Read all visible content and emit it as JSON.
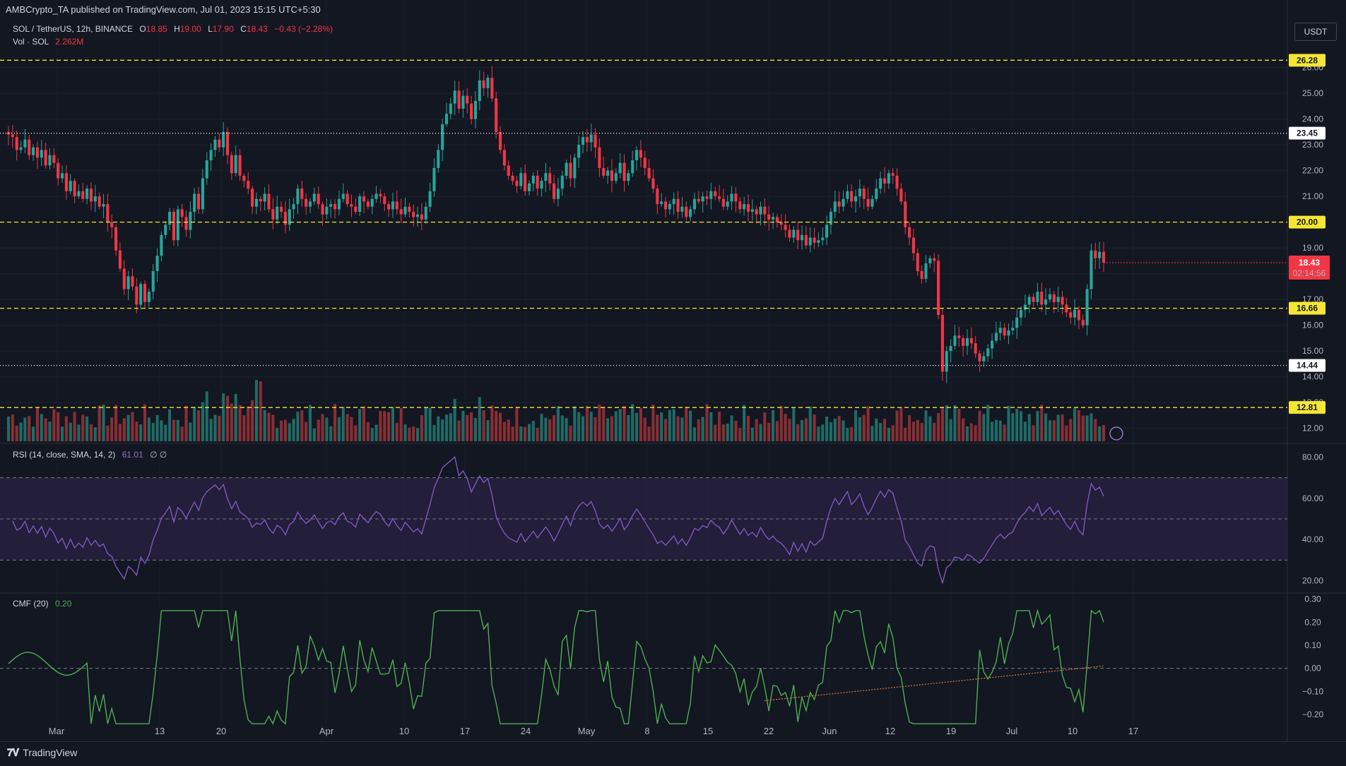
{
  "publication": {
    "text": "AMBCrypto_TA published on TradingView.com, Jul 01, 2023 15:15 UTC+5:30"
  },
  "main_legend": {
    "symbol": "SOL / TetherUS, 12h, BINANCE",
    "o_label": "O",
    "o_value": "18.85",
    "h_label": "H",
    "h_value": "19.00",
    "l_label": "L",
    "l_value": "17.90",
    "c_label": "C",
    "c_value": "18.43",
    "change": "−0.43 (−2.28%)"
  },
  "volume_legend": {
    "label": "Vol · SOL",
    "value": "2.262M"
  },
  "rsi_legend": {
    "label": "RSI (14, close, SMA, 14, 2)",
    "value": "61.01",
    "extra": "∅ ∅"
  },
  "cmf_legend": {
    "label": "CMF (20)",
    "value": "0.20"
  },
  "currency": "USDT",
  "branding": {
    "mark": "𝟕𝐕",
    "name": "TradingView"
  },
  "colors": {
    "background": "#131722",
    "up": "#26a69a",
    "down": "#f23645",
    "volume_up": "#1f6b66",
    "volume_down": "#8a2e33",
    "level_line": "#f5e633",
    "white_line": "#ffffff",
    "rsi_line": "#7e57c2",
    "rsi_band": "#2a2142",
    "cmf_line": "#4caf50",
    "trend_line": "#e07b39"
  },
  "price_levels": [
    {
      "value": 26.28,
      "label": "26.28",
      "style": "yellow-dashed"
    },
    {
      "value": 23.45,
      "label": "23.45",
      "style": "white-dotted"
    },
    {
      "value": 20.0,
      "label": "20.00",
      "style": "yellow-dashed"
    },
    {
      "value": 16.66,
      "label": "16.66",
      "style": "yellow-dashed"
    },
    {
      "value": 14.44,
      "label": "14.44",
      "style": "white-dotted"
    },
    {
      "value": 12.81,
      "label": "12.81",
      "style": "yellow-dashed"
    }
  ],
  "current_price": {
    "value": 18.43,
    "label": "18.43",
    "countdown": "02:14:56"
  },
  "chart_data": [
    {
      "type": "candlestick",
      "title": "SOL / TetherUS, 12h, BINANCE",
      "ylabel": "USDT",
      "ylim": [
        11.5,
        26.7
      ],
      "yticks": [
        "12.00",
        "13.00",
        "14.00",
        "15.00",
        "16.00",
        "17.00",
        "18.00",
        "19.00",
        "20.00",
        "21.00",
        "22.00",
        "23.00",
        "24.00",
        "25.00",
        "26.00"
      ],
      "xticks": [
        "Mar",
        "13",
        "20",
        "Apr",
        "10",
        "17",
        "24",
        "May",
        "8",
        "15",
        "22",
        "Jun",
        "12",
        "19",
        "Jul",
        "10",
        "17"
      ],
      "series": [
        {
          "name": "SOL / TetherUS",
          "close": [
            23.4,
            23.3,
            22.8,
            22.9,
            23.2,
            22.6,
            22.9,
            22.5,
            22.8,
            22.2,
            22.6,
            22.3,
            21.7,
            21.9,
            21.2,
            21.6,
            21.0,
            21.2,
            20.9,
            21.3,
            20.8,
            21.0,
            20.6,
            20.7,
            20.0,
            19.8,
            18.9,
            18.2,
            17.4,
            17.9,
            17.5,
            16.8,
            17.6,
            16.9,
            17.3,
            18.1,
            18.7,
            19.5,
            19.9,
            20.4,
            19.3,
            20.5,
            20.2,
            19.7,
            20.4,
            21.1,
            20.5,
            21.7,
            22.4,
            22.8,
            23.2,
            22.9,
            23.5,
            22.6,
            21.9,
            22.6,
            21.8,
            21.6,
            21.3,
            20.6,
            20.9,
            20.8,
            21.1,
            20.5,
            20.1,
            20.6,
            20.4,
            19.9,
            20.5,
            20.7,
            21.3,
            20.9,
            20.6,
            20.8,
            21.1,
            20.7,
            20.3,
            20.6,
            20.7,
            20.5,
            20.9,
            21.1,
            20.7,
            20.6,
            20.4,
            21.0,
            20.8,
            20.6,
            20.9,
            21.1,
            21.0,
            20.7,
            20.5,
            20.8,
            20.5,
            20.3,
            20.6,
            20.4,
            20.2,
            20.3,
            20.1,
            20.6,
            21.2,
            22.1,
            22.8,
            23.8,
            24.2,
            24.6,
            25.1,
            24.4,
            24.9,
            24.6,
            24.0,
            24.7,
            25.5,
            25.2,
            25.6,
            24.8,
            23.5,
            22.8,
            22.2,
            21.8,
            21.6,
            21.4,
            21.9,
            21.2,
            21.5,
            21.8,
            21.3,
            21.6,
            21.9,
            21.5,
            20.9,
            21.3,
            21.8,
            22.3,
            21.7,
            22.5,
            23.0,
            23.3,
            23.1,
            23.4,
            22.9,
            22.1,
            21.8,
            22.0,
            21.6,
            21.9,
            22.3,
            21.6,
            21.9,
            22.4,
            22.8,
            22.5,
            22.1,
            21.7,
            21.3,
            20.7,
            20.8,
            20.5,
            20.7,
            20.9,
            20.4,
            20.6,
            20.2,
            20.5,
            20.9,
            20.8,
            21.0,
            20.9,
            21.2,
            21.0,
            20.9,
            20.6,
            20.8,
            21.1,
            20.8,
            20.5,
            20.7,
            20.4,
            20.5,
            20.3,
            20.6,
            20.3,
            20.1,
            20.2,
            20.0,
            19.9,
            19.7,
            19.4,
            19.7,
            19.3,
            19.5,
            19.1,
            19.4,
            19.2,
            19.3,
            19.4,
            19.9,
            20.4,
            20.8,
            20.6,
            20.9,
            21.2,
            20.8,
            21.0,
            21.3,
            20.9,
            20.6,
            20.9,
            21.3,
            21.7,
            21.5,
            21.9,
            21.8,
            21.3,
            20.8,
            19.8,
            19.4,
            18.8,
            18.1,
            17.8,
            18.4,
            18.6,
            18.5,
            16.4,
            14.2,
            15.0,
            15.2,
            15.6,
            15.5,
            15.2,
            15.5,
            15.3,
            14.9,
            14.6,
            14.8,
            15.1,
            15.4,
            15.7,
            15.9,
            15.6,
            15.8,
            15.9,
            16.3,
            16.6,
            16.8,
            17.1,
            16.9,
            17.3,
            16.8,
            17.0,
            17.2,
            16.9,
            17.1,
            16.8,
            16.5,
            16.3,
            16.6,
            16.2,
            16.0,
            17.4,
            18.9,
            18.6,
            18.85,
            18.43
          ]
        },
        {
          "name": "Vol · SOL",
          "note": "volume bars, relative scale",
          "max": 1.0
        }
      ]
    },
    {
      "type": "line",
      "title": "RSI (14, close, SMA, 14, 2)",
      "ylim": [
        14,
        86
      ],
      "yticks": [
        "20.00",
        "40.00",
        "60.00",
        "80.00"
      ],
      "bands": [
        30,
        50,
        70
      ],
      "series": [
        {
          "name": "RSI",
          "last": 61.01
        }
      ]
    },
    {
      "type": "line",
      "title": "CMF (20)",
      "ylim": [
        -0.27,
        0.32
      ],
      "yticks": [
        "−0.20",
        "−0.10",
        "0.00",
        "0.10",
        "0.20",
        "0.30"
      ],
      "series": [
        {
          "name": "CMF",
          "last": 0.2
        }
      ]
    }
  ]
}
